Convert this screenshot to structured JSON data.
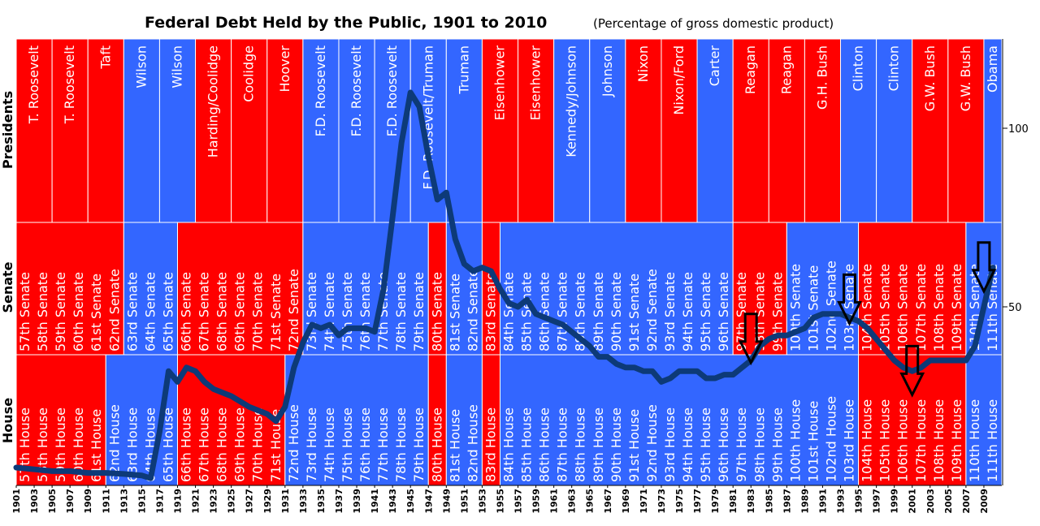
{
  "title": "Federal Debt Held by the Public, 1901 to 2010",
  "subtitle": "(Percentage of gross domestic product)",
  "row_labels": {
    "presidents": "Presidents",
    "senate": "Senate",
    "house": "House"
  },
  "colors": {
    "republican": "#ff0000",
    "democrat": "#3366ff",
    "line": "#0d3a78",
    "grid": "#ffffff"
  },
  "chart_data": {
    "type": "line",
    "x_range": [
      1901,
      2011
    ],
    "ylim": [
      0,
      125
    ],
    "y_ticks": [
      {
        "value": 50,
        "label": "50"
      },
      {
        "value": 100,
        "label": "100"
      }
    ],
    "x_ticks": [
      "1901",
      "1903",
      "1905",
      "1907",
      "1909",
      "1911",
      "1913",
      "1915",
      "1917",
      "1919",
      "1921",
      "1923",
      "1925",
      "1927",
      "1929",
      "1931",
      "1933",
      "1935",
      "1937",
      "1939",
      "1941",
      "1943",
      "1945",
      "1947",
      "1949",
      "1951",
      "1953",
      "1955",
      "1957",
      "1959",
      "1961",
      "1963",
      "1965",
      "1967",
      "1969",
      "1971",
      "1973",
      "1975",
      "1977",
      "1979",
      "1981",
      "1983",
      "1985",
      "1987",
      "1989",
      "1991",
      "1993",
      "1995",
      "1997",
      "1999",
      "2001",
      "2003",
      "2005",
      "2007",
      "2009"
    ],
    "series": [
      {
        "x": [
          1901,
          1903,
          1905,
          1907,
          1909,
          1911,
          1913,
          1915,
          1916,
          1917,
          1918,
          1919,
          1920,
          1921,
          1922,
          1923,
          1925,
          1927,
          1929,
          1930,
          1931,
          1932,
          1933,
          1934,
          1935,
          1936,
          1937,
          1938,
          1939,
          1940,
          1941,
          1942,
          1943,
          1944,
          1945,
          1946,
          1947,
          1948,
          1949,
          1950,
          1951,
          1952,
          1953,
          1954,
          1955,
          1956,
          1957,
          1958,
          1959,
          1960,
          1961,
          1962,
          1963,
          1964,
          1965,
          1966,
          1967,
          1968,
          1969,
          1970,
          1971,
          1972,
          1973,
          1974,
          1975,
          1976,
          1977,
          1978,
          1979,
          1980,
          1981,
          1982,
          1983,
          1984,
          1985,
          1986,
          1987,
          1988,
          1989,
          1990,
          1991,
          1992,
          1993,
          1994,
          1995,
          1996,
          1997,
          1998,
          1999,
          2000,
          2001,
          2002,
          2003,
          2004,
          2005,
          2006,
          2007,
          2008,
          2009,
          2010
        ],
        "values": [
          5,
          4.5,
          4,
          4,
          3.5,
          3.5,
          3.2,
          2.8,
          2,
          15,
          32,
          29,
          33,
          32,
          29,
          27,
          25,
          22,
          20,
          18,
          22,
          33,
          40,
          45,
          44,
          45,
          42,
          44,
          44,
          44,
          43,
          55,
          75,
          96,
          110,
          106,
          92,
          80,
          82,
          69,
          62,
          60,
          61,
          60,
          55,
          51,
          50,
          52,
          48,
          47,
          46,
          45,
          43,
          41,
          39,
          36,
          36,
          34,
          33,
          33,
          32,
          32,
          29,
          30,
          32,
          32,
          32,
          30,
          30,
          31,
          31,
          33,
          35,
          39,
          41,
          42,
          42,
          43,
          44,
          47,
          48,
          48,
          48,
          47,
          46,
          44,
          41,
          38,
          35,
          33,
          32,
          33,
          35,
          35,
          35,
          35,
          35,
          39,
          50,
          61
        ]
      }
    ],
    "presidents": [
      {
        "start": 1901,
        "end": 1905,
        "party": "R",
        "label": "T. Roosevelt"
      },
      {
        "start": 1905,
        "end": 1909,
        "party": "R",
        "label": "T. Roosevelt"
      },
      {
        "start": 1909,
        "end": 1913,
        "party": "R",
        "label": "Taft"
      },
      {
        "start": 1913,
        "end": 1917,
        "party": "D",
        "label": "Wilson"
      },
      {
        "start": 1917,
        "end": 1921,
        "party": "D",
        "label": "Wilson"
      },
      {
        "start": 1921,
        "end": 1925,
        "party": "R",
        "label": "Harding/Coolidge"
      },
      {
        "start": 1925,
        "end": 1929,
        "party": "R",
        "label": "Coolidge"
      },
      {
        "start": 1929,
        "end": 1933,
        "party": "R",
        "label": "Hoover"
      },
      {
        "start": 1933,
        "end": 1937,
        "party": "D",
        "label": "F.D. Roosevelt"
      },
      {
        "start": 1937,
        "end": 1941,
        "party": "D",
        "label": "F.D. Roosevelt"
      },
      {
        "start": 1941,
        "end": 1945,
        "party": "D",
        "label": "F.D. Roosevelt"
      },
      {
        "start": 1945,
        "end": 1949,
        "party": "D",
        "label": "F.D. Roosevelt/Truman"
      },
      {
        "start": 1949,
        "end": 1953,
        "party": "D",
        "label": "Truman"
      },
      {
        "start": 1953,
        "end": 1957,
        "party": "R",
        "label": "Eisenhower"
      },
      {
        "start": 1957,
        "end": 1961,
        "party": "R",
        "label": "Eisenhower"
      },
      {
        "start": 1961,
        "end": 1965,
        "party": "D",
        "label": "Kennedy/Johnson"
      },
      {
        "start": 1965,
        "end": 1969,
        "party": "D",
        "label": "Johnson"
      },
      {
        "start": 1969,
        "end": 1973,
        "party": "R",
        "label": "Nixon"
      },
      {
        "start": 1973,
        "end": 1977,
        "party": "R",
        "label": "Nixon/Ford"
      },
      {
        "start": 1977,
        "end": 1981,
        "party": "D",
        "label": "Carter"
      },
      {
        "start": 1981,
        "end": 1985,
        "party": "R",
        "label": "Reagan"
      },
      {
        "start": 1985,
        "end": 1989,
        "party": "R",
        "label": "Reagan"
      },
      {
        "start": 1989,
        "end": 1993,
        "party": "R",
        "label": "G.H. Bush"
      },
      {
        "start": 1993,
        "end": 1997,
        "party": "D",
        "label": "Clinton"
      },
      {
        "start": 1997,
        "end": 2001,
        "party": "D",
        "label": "Clinton"
      },
      {
        "start": 2001,
        "end": 2005,
        "party": "R",
        "label": "G.W. Bush"
      },
      {
        "start": 2005,
        "end": 2009,
        "party": "R",
        "label": "G.W. Bush"
      },
      {
        "start": 2009,
        "end": 2011,
        "party": "D",
        "label": "Obama"
      }
    ],
    "senate_first": 57,
    "senate_parties": [
      "R",
      "R",
      "R",
      "R",
      "R",
      "R",
      "D",
      "D",
      "D",
      "R",
      "R",
      "R",
      "R",
      "R",
      "R",
      "R",
      "D",
      "D",
      "D",
      "D",
      "D",
      "D",
      "D",
      "R",
      "D",
      "D",
      "R",
      "D",
      "D",
      "D",
      "D",
      "D",
      "D",
      "D",
      "D",
      "D",
      "D",
      "D",
      "D",
      "D",
      "R",
      "R",
      "R",
      "D",
      "D",
      "D",
      "D",
      "R",
      "R",
      "R",
      "R",
      "R",
      "R",
      "D",
      "D"
    ],
    "house_first": 57,
    "house_parties": [
      "R",
      "R",
      "R",
      "R",
      "R",
      "D",
      "D",
      "D",
      "D",
      "R",
      "R",
      "R",
      "R",
      "R",
      "R",
      "D",
      "D",
      "D",
      "D",
      "D",
      "D",
      "D",
      "D",
      "R",
      "D",
      "D",
      "R",
      "D",
      "D",
      "D",
      "D",
      "D",
      "D",
      "D",
      "D",
      "D",
      "D",
      "D",
      "D",
      "D",
      "D",
      "D",
      "D",
      "D",
      "D",
      "D",
      "D",
      "R",
      "R",
      "R",
      "R",
      "R",
      "R",
      "D",
      "D"
    ],
    "annotations": [
      {
        "type": "arrow-down",
        "year": 1983,
        "value": 48
      },
      {
        "type": "arrow-down",
        "year": 1994,
        "value": 59
      },
      {
        "type": "arrow-down",
        "year": 2001,
        "value": 39
      },
      {
        "type": "arrow-down",
        "year": 2009,
        "value": 68
      }
    ]
  }
}
